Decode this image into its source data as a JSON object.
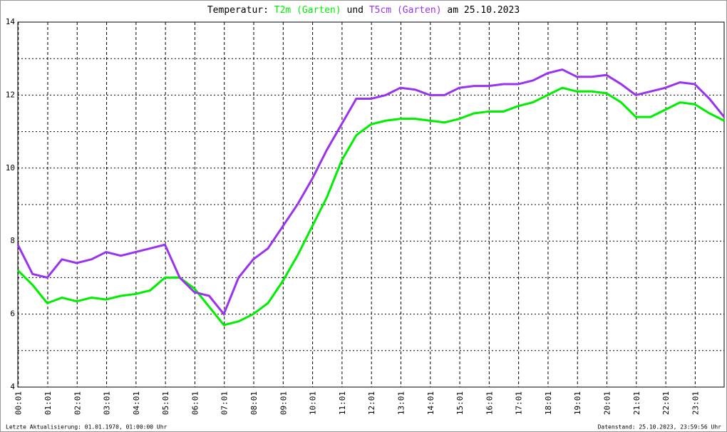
{
  "chart_data": {
    "type": "line",
    "title_parts": [
      "Temperatur:",
      "und",
      "am 25.10.2023"
    ],
    "x": [
      0,
      0.5,
      1,
      1.5,
      2,
      2.5,
      3,
      3.5,
      4,
      4.5,
      5,
      5.5,
      6,
      6.5,
      7,
      7.5,
      8,
      8.5,
      9,
      9.5,
      10,
      10.5,
      11,
      11.5,
      12,
      12.5,
      13,
      13.5,
      14,
      14.5,
      15,
      15.5,
      16,
      16.5,
      17,
      17.5,
      18,
      18.5,
      19,
      19.5,
      20,
      20.5,
      21,
      21.5,
      22,
      22.5,
      23,
      23.5,
      24
    ],
    "series": [
      {
        "name": "T2m (Garten)",
        "color": "#00ee00",
        "values": [
          7.2,
          6.8,
          6.3,
          6.45,
          6.35,
          6.45,
          6.4,
          6.5,
          6.55,
          6.65,
          7.0,
          7.0,
          6.7,
          6.2,
          5.7,
          5.8,
          6.0,
          6.3,
          6.9,
          7.6,
          8.4,
          9.2,
          10.2,
          10.9,
          11.2,
          11.3,
          11.35,
          11.35,
          11.3,
          11.25,
          11.35,
          11.5,
          11.55,
          11.55,
          11.7,
          11.8,
          12.0,
          12.2,
          12.1,
          12.1,
          12.05,
          11.8,
          11.4,
          11.4,
          11.6,
          11.8,
          11.75,
          11.5,
          11.3
        ]
      },
      {
        "name": "T5cm (Garten)",
        "color": "#9933ee",
        "values": [
          7.9,
          7.1,
          7.0,
          7.5,
          7.4,
          7.5,
          7.7,
          7.6,
          7.7,
          7.8,
          7.9,
          7.0,
          6.6,
          6.5,
          6.0,
          7.0,
          7.5,
          7.8,
          8.4,
          9.0,
          9.7,
          10.5,
          11.2,
          11.9,
          11.9,
          12.0,
          12.2,
          12.15,
          12.0,
          12.0,
          12.2,
          12.25,
          12.25,
          12.3,
          12.3,
          12.4,
          12.6,
          12.7,
          12.5,
          12.5,
          12.55,
          12.3,
          12.0,
          12.1,
          12.2,
          12.35,
          12.3,
          11.9,
          11.4
        ]
      }
    ],
    "xlim": [
      0,
      24
    ],
    "xticks": [
      {
        "value": 0.0167,
        "label": "00:01"
      },
      {
        "value": 1.0167,
        "label": "01:01"
      },
      {
        "value": 2.0167,
        "label": "02:01"
      },
      {
        "value": 3.0167,
        "label": "03:01"
      },
      {
        "value": 4.0167,
        "label": "04:01"
      },
      {
        "value": 5.0167,
        "label": "05:01"
      },
      {
        "value": 6.0167,
        "label": "06:01"
      },
      {
        "value": 7.0167,
        "label": "07:01"
      },
      {
        "value": 8.0167,
        "label": "08:01"
      },
      {
        "value": 9.0167,
        "label": "09:01"
      },
      {
        "value": 10.0167,
        "label": "10:01"
      },
      {
        "value": 11.0167,
        "label": "11:01"
      },
      {
        "value": 12.0167,
        "label": "12:01"
      },
      {
        "value": 13.0167,
        "label": "13:01"
      },
      {
        "value": 14.0167,
        "label": "14:01"
      },
      {
        "value": 15.0167,
        "label": "15:01"
      },
      {
        "value": 16.0167,
        "label": "16:01"
      },
      {
        "value": 17.0167,
        "label": "17:01"
      },
      {
        "value": 18.0167,
        "label": "18:01"
      },
      {
        "value": 19.0167,
        "label": "19:01"
      },
      {
        "value": 20.0167,
        "label": "20:01"
      },
      {
        "value": 21.0167,
        "label": "21:01"
      },
      {
        "value": 22.0167,
        "label": "22:01"
      },
      {
        "value": 23.0167,
        "label": "23:01"
      }
    ],
    "ylim": [
      4,
      14
    ],
    "yticks": [
      4,
      6,
      8,
      10,
      12,
      14
    ],
    "grid": true,
    "minor_grid": true,
    "footer_left": "Letzte Aktualisierung: 01.01.1970, 01:00:00 Uhr",
    "footer_right": "Datenstand: 25.10.2023, 23:59:56 Uhr"
  }
}
